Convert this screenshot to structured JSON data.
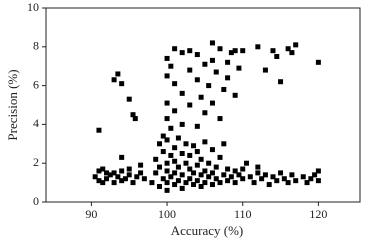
{
  "chart_data": {
    "type": "scatter",
    "xlabel": "Accuracy (%)",
    "ylabel": "Precision (%)",
    "xlim": [
      84,
      125.5
    ],
    "ylim": [
      0,
      10
    ],
    "xticks": [
      90,
      100,
      110,
      120
    ],
    "yticks": [
      0,
      2,
      4,
      6,
      8,
      10
    ],
    "series": [
      {
        "color": "#000000",
        "x": [
          90.5,
          91,
          91,
          91.5,
          92,
          92.5,
          93,
          93,
          93.5,
          94,
          94,
          94.5,
          95,
          95.5,
          96,
          96.5,
          97,
          91.5,
          92,
          95,
          93,
          93.5,
          94,
          95,
          95.5,
          95.8,
          91,
          94,
          96.5,
          98,
          98.5,
          98.5,
          99,
          99,
          99,
          99.5,
          99.5,
          99.5,
          100,
          100,
          100,
          100,
          100,
          100.5,
          100.5,
          100.5,
          101,
          101,
          101,
          101,
          101.5,
          101.5,
          101.5,
          102,
          102,
          102,
          102.5,
          102.5,
          102.5,
          103,
          103,
          103,
          103.5,
          103.5,
          103.5,
          104,
          104,
          104,
          104.5,
          104.5,
          104.5,
          105,
          105,
          105,
          105.5,
          105.5,
          106,
          106,
          106,
          106.5,
          106.5,
          107,
          107,
          107.5,
          107.5,
          108,
          108,
          108.5,
          109,
          109,
          109.5,
          110,
          110,
          100,
          100,
          100,
          100,
          100.5,
          101,
          101,
          101,
          102,
          102,
          102,
          103,
          103,
          103,
          104,
          104,
          104,
          104.5,
          105,
          105,
          105.5,
          106,
          106,
          106,
          106.5,
          107,
          107,
          107.5,
          108,
          108,
          108.5,
          109,
          109,
          109.5,
          110,
          111,
          111.5,
          112,
          112.5,
          113,
          113.5,
          114,
          114.5,
          115,
          115.5,
          116,
          116.5,
          117,
          118,
          118.5,
          119,
          119.5,
          120,
          120,
          112,
          110.5,
          112,
          114,
          114.5,
          116,
          117,
          116.5,
          120,
          113,
          115
        ],
        "values": [
          1.3,
          1.6,
          1.1,
          1.7,
          1.2,
          1.4,
          1.0,
          1.5,
          1.3,
          1.1,
          1.6,
          1.2,
          1.4,
          1.0,
          1.3,
          1.5,
          1.2,
          1.0,
          1.5,
          1.7,
          6.3,
          6.6,
          6.1,
          5.3,
          4.5,
          4.3,
          3.7,
          2.3,
          1.9,
          1.0,
          1.5,
          2.2,
          0.8,
          1.8,
          3.0,
          1.2,
          2.6,
          3.4,
          0.6,
          1.0,
          1.6,
          2.0,
          3.2,
          1.3,
          2.4,
          3.8,
          0.9,
          1.5,
          2.1,
          2.8,
          1.1,
          1.8,
          3.3,
          0.7,
          1.4,
          2.5,
          1.0,
          2.0,
          3.0,
          1.2,
          1.7,
          2.4,
          0.9,
          1.5,
          2.9,
          1.1,
          1.9,
          2.6,
          0.8,
          1.4,
          2.2,
          1.0,
          1.6,
          3.1,
          1.3,
          2.0,
          0.9,
          1.5,
          2.7,
          1.2,
          1.8,
          1.0,
          2.3,
          1.4,
          3.0,
          1.1,
          1.7,
          1.3,
          1.0,
          1.6,
          1.4,
          1.2,
          1.7,
          4.3,
          5.1,
          6.5,
          7.4,
          7.0,
          7.9,
          6.1,
          4.7,
          7.7,
          5.6,
          4.0,
          7.8,
          6.8,
          5.0,
          7.6,
          6.3,
          3.9,
          5.4,
          7.1,
          4.6,
          6.0,
          8.2,
          7.3,
          5.1,
          6.7,
          7.9,
          4.3,
          5.8,
          7.2,
          6.4,
          7.7,
          7.8,
          5.5,
          6.9,
          7.8,
          1.3,
          1.0,
          1.5,
          1.2,
          1.4,
          0.9,
          1.3,
          1.1,
          1.5,
          1.2,
          1.0,
          1.4,
          1.1,
          1.3,
          1.0,
          1.2,
          1.4,
          1.1,
          1.6,
          1.8,
          2.0,
          8.0,
          7.8,
          7.5,
          7.9,
          8.1,
          7.7,
          7.2,
          6.8,
          6.2
        ]
      }
    ]
  }
}
